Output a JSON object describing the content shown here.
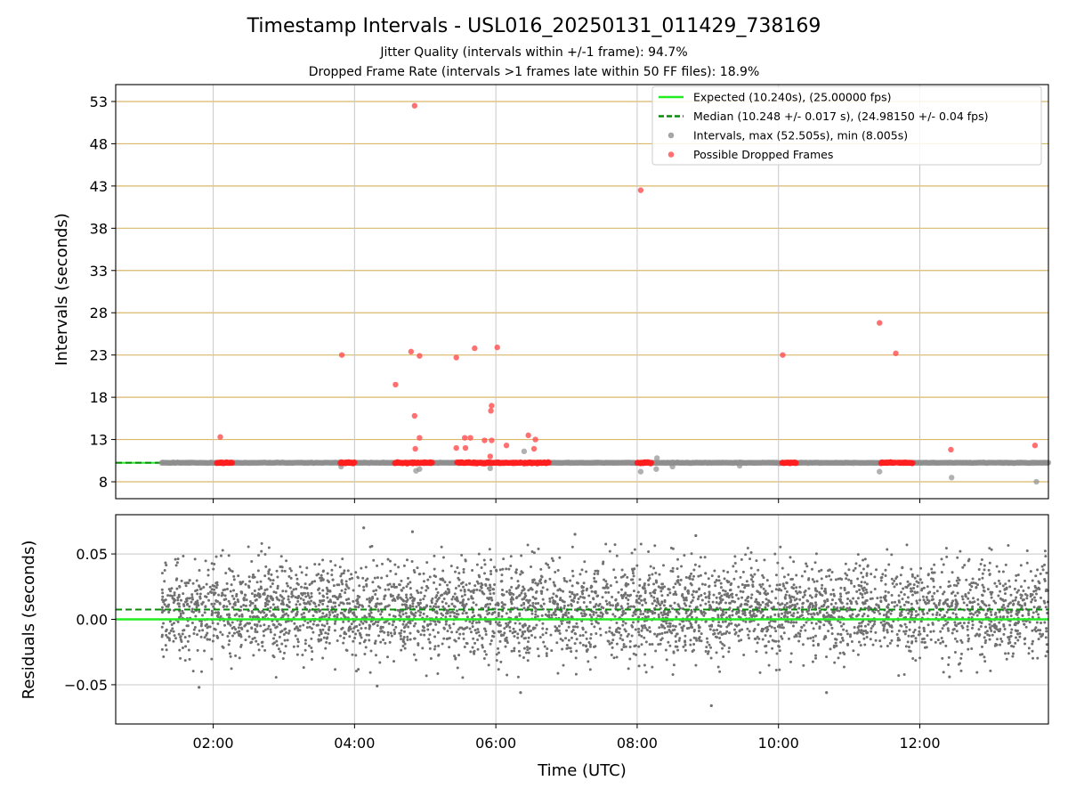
{
  "chart_data": {
    "type": "scatter",
    "title": "Timestamp Intervals - USL016_20250131_011429_738169",
    "subtitle_lines": [
      "Jitter Quality (intervals within +/-1 frame): 94.7%",
      "Dropped Frame Rate (intervals >1 frames late within 50 FF files): 18.9%"
    ],
    "xlabel": "Time (UTC)",
    "x_range_hours": [
      0.62,
      13.82
    ],
    "x_ticks": [
      {
        "value": 2,
        "label": "02:00"
      },
      {
        "value": 4,
        "label": "04:00"
      },
      {
        "value": 6,
        "label": "06:00"
      },
      {
        "value": 8,
        "label": "08:00"
      },
      {
        "value": 10,
        "label": "10:00"
      },
      {
        "value": 12,
        "label": "12:00"
      }
    ],
    "top_panel": {
      "ylabel": "Intervals (seconds)",
      "ylim": [
        6.0,
        55.0
      ],
      "y_ticks": [
        8,
        13,
        18,
        23,
        28,
        33,
        38,
        43,
        48,
        53
      ],
      "horizontal_grid_color": "#d9b869",
      "expected_interval": 10.24,
      "median_interval": 10.248,
      "data_start_hour": 1.27,
      "data_end_hour": 13.82,
      "dropped_clusters": [
        [
          2.05,
          2.27
        ],
        [
          3.8,
          4.0
        ],
        [
          4.57,
          5.1
        ],
        [
          5.45,
          6.35
        ],
        [
          6.4,
          6.75
        ],
        [
          8.0,
          8.2
        ],
        [
          10.05,
          10.25
        ],
        [
          11.45,
          11.65
        ],
        [
          11.7,
          11.9
        ]
      ],
      "dropped_outliers": [
        [
          4.85,
          52.5
        ],
        [
          8.05,
          42.5
        ],
        [
          11.43,
          26.8
        ],
        [
          4.8,
          23.4
        ],
        [
          4.92,
          22.9
        ],
        [
          3.82,
          23.0
        ],
        [
          5.44,
          22.7
        ],
        [
          5.7,
          23.8
        ],
        [
          6.02,
          23.9
        ],
        [
          10.06,
          23.0
        ],
        [
          11.66,
          23.2
        ],
        [
          4.58,
          19.5
        ],
        [
          5.94,
          17.0
        ],
        [
          5.93,
          16.4
        ],
        [
          4.85,
          15.8
        ],
        [
          6.46,
          13.5
        ],
        [
          6.56,
          13.0
        ],
        [
          5.56,
          13.2
        ],
        [
          5.64,
          13.2
        ],
        [
          5.84,
          12.9
        ],
        [
          5.94,
          12.9
        ],
        [
          6.15,
          12.3
        ],
        [
          2.1,
          13.3
        ],
        [
          5.44,
          12.0
        ],
        [
          5.57,
          12.0
        ],
        [
          4.86,
          11.9
        ],
        [
          4.92,
          13.2
        ],
        [
          6.54,
          11.9
        ],
        [
          12.44,
          11.8
        ],
        [
          13.63,
          12.3
        ],
        [
          5.92,
          11.0
        ]
      ],
      "gray_outliers": [
        [
          4.87,
          9.3
        ],
        [
          4.92,
          9.5
        ],
        [
          3.81,
          9.8
        ],
        [
          5.92,
          9.6
        ],
        [
          6.4,
          11.6
        ],
        [
          8.05,
          9.2
        ],
        [
          8.28,
          10.8
        ],
        [
          8.27,
          9.5
        ],
        [
          8.5,
          10.3
        ],
        [
          8.5,
          9.8
        ],
        [
          9.45,
          10.3
        ],
        [
          9.45,
          9.9
        ],
        [
          11.43,
          9.2
        ],
        [
          12.45,
          8.5
        ],
        [
          13.65,
          8.0
        ]
      ],
      "legend": {
        "position": "top-right",
        "entries": [
          {
            "label": "Expected (10.240s), (25.00000 fps)",
            "color": "#22ee22",
            "style": "solid-line"
          },
          {
            "label": "Median (10.248 +/- 0.017 s), (24.98150 +/- 0.04 fps)",
            "color": "#0a8a0a",
            "style": "dashed-line"
          },
          {
            "label": "Intervals, max (52.505s), min (8.005s)",
            "color": "#909090",
            "style": "marker"
          },
          {
            "label": "Possible Dropped Frames",
            "color": "#ff4d4d",
            "style": "marker"
          }
        ]
      }
    },
    "bottom_panel": {
      "ylabel": "Residuals (seconds)",
      "ylim": [
        -0.08,
        0.08
      ],
      "y_ticks": [
        {
          "value": 0.05,
          "label": "0.05"
        },
        {
          "value": 0.0,
          "label": "0.00"
        },
        {
          "value": -0.05,
          "label": "−0.05"
        }
      ],
      "expected_residual": 0.0,
      "median_residual": 0.0075,
      "residual_spread_sd": 0.018,
      "n_points": 4200,
      "notable_points": [
        [
          4.13,
          0.07
        ],
        [
          4.82,
          0.067
        ],
        [
          8.83,
          0.064
        ],
        [
          7.12,
          0.065
        ],
        [
          9.05,
          -0.066
        ],
        [
          10.68,
          -0.056
        ],
        [
          6.35,
          -0.056
        ],
        [
          4.32,
          -0.051
        ],
        [
          1.8,
          -0.052
        ],
        [
          12.42,
          -0.044
        ]
      ],
      "point_color": "#707070"
    }
  }
}
